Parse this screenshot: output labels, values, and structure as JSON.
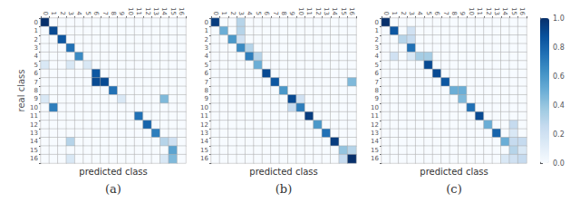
{
  "chart_data": [
    {
      "type": "heatmap",
      "title": "(a)",
      "xlabel": "predicted class",
      "ylabel": "real class",
      "categories": [
        "0",
        "1",
        "2",
        "3",
        "4",
        "5",
        "6",
        "7",
        "8",
        "9",
        "10",
        "11",
        "12",
        "13",
        "14",
        "15",
        "16"
      ],
      "color": "Blues",
      "grid": true,
      "colorbar_range": [
        0.0,
        1.0
      ],
      "colorbar_ticks": [
        {
          "value": 0.0,
          "label": "0.0"
        },
        0.2,
        0.4,
        0.6,
        0.8,
        {
          "value": 1.0,
          "label": "1.0"
        }
      ],
      "values": [
        [
          1.0,
          0.0,
          0.0,
          0.0,
          0.0,
          0.0,
          0.0,
          0.0,
          0.0,
          0.0,
          0.0,
          0.0,
          0.0,
          0.0,
          0.0,
          0.0,
          0.0
        ],
        [
          0.0,
          0.9,
          0.0,
          0.0,
          0.0,
          0.0,
          0.0,
          0.0,
          0.0,
          0.0,
          0.0,
          0.0,
          0.0,
          0.0,
          0.0,
          0.0,
          0.0
        ],
        [
          0.0,
          0.0,
          0.85,
          0.0,
          0.0,
          0.0,
          0.0,
          0.0,
          0.0,
          0.0,
          0.0,
          0.0,
          0.0,
          0.0,
          0.0,
          0.0,
          0.0
        ],
        [
          0.0,
          0.0,
          0.0,
          0.75,
          0.0,
          0.0,
          0.0,
          0.0,
          0.0,
          0.0,
          0.0,
          0.0,
          0.0,
          0.0,
          0.0,
          0.0,
          0.0
        ],
        [
          0.0,
          0.0,
          0.0,
          0.0,
          0.65,
          0.0,
          0.0,
          0.0,
          0.0,
          0.0,
          0.0,
          0.0,
          0.0,
          0.0,
          0.0,
          0.0,
          0.0
        ],
        [
          0.15,
          0.0,
          0.0,
          0.15,
          0.0,
          0.15,
          0.0,
          0.0,
          0.0,
          0.0,
          0.0,
          0.0,
          0.0,
          0.0,
          0.0,
          0.0,
          0.0
        ],
        [
          0.0,
          0.0,
          0.0,
          0.0,
          0.0,
          0.0,
          0.85,
          0.0,
          0.0,
          0.0,
          0.0,
          0.0,
          0.0,
          0.0,
          0.0,
          0.0,
          0.0
        ],
        [
          0.0,
          0.0,
          0.0,
          0.0,
          0.0,
          0.0,
          0.9,
          0.9,
          0.0,
          0.0,
          0.0,
          0.0,
          0.0,
          0.0,
          0.0,
          0.0,
          0.0
        ],
        [
          0.0,
          0.0,
          0.0,
          0.0,
          0.0,
          0.0,
          0.0,
          0.0,
          0.75,
          0.0,
          0.0,
          0.0,
          0.0,
          0.0,
          0.0,
          0.0,
          0.0
        ],
        [
          0.15,
          0.0,
          0.0,
          0.0,
          0.0,
          0.0,
          0.0,
          0.0,
          0.0,
          0.15,
          0.0,
          0.0,
          0.0,
          0.0,
          0.45,
          0.0,
          0.0
        ],
        [
          0.0,
          0.7,
          0.0,
          0.0,
          0.0,
          0.0,
          0.0,
          0.0,
          0.0,
          0.0,
          0.0,
          0.0,
          0.0,
          0.0,
          0.0,
          0.0,
          0.0
        ],
        [
          0.0,
          0.0,
          0.0,
          0.0,
          0.0,
          0.0,
          0.0,
          0.0,
          0.0,
          0.0,
          0.0,
          0.75,
          0.0,
          0.0,
          0.0,
          0.0,
          0.0
        ],
        [
          0.0,
          0.0,
          0.0,
          0.0,
          0.0,
          0.0,
          0.0,
          0.0,
          0.0,
          0.0,
          0.0,
          0.0,
          0.8,
          0.0,
          0.0,
          0.0,
          0.0
        ],
        [
          0.0,
          0.0,
          0.0,
          0.0,
          0.0,
          0.0,
          0.0,
          0.0,
          0.0,
          0.0,
          0.0,
          0.0,
          0.0,
          0.7,
          0.0,
          0.0,
          0.0
        ],
        [
          0.0,
          0.0,
          0.0,
          0.3,
          0.0,
          0.0,
          0.0,
          0.0,
          0.0,
          0.0,
          0.0,
          0.0,
          0.0,
          0.0,
          0.3,
          0.2,
          0.0
        ],
        [
          0.0,
          0.0,
          0.0,
          0.0,
          0.0,
          0.0,
          0.0,
          0.0,
          0.0,
          0.0,
          0.0,
          0.0,
          0.0,
          0.0,
          0.0,
          0.55,
          0.0
        ],
        [
          0.0,
          0.0,
          0.0,
          0.15,
          0.0,
          0.0,
          0.0,
          0.0,
          0.0,
          0.0,
          0.0,
          0.0,
          0.0,
          0.0,
          0.15,
          0.45,
          0.0
        ]
      ]
    },
    {
      "type": "heatmap",
      "title": "(b)",
      "xlabel": "predicted class",
      "categories": [
        "0",
        "1",
        "2",
        "3",
        "4",
        "5",
        "6",
        "7",
        "8",
        "9",
        "10",
        "11",
        "12",
        "13",
        "14",
        "15",
        "16"
      ],
      "color": "Blues",
      "grid": true,
      "colorbar_range": [
        0.0,
        1.0
      ],
      "colorbar_ticks": [
        {
          "value": 0.0,
          "label": "0.0"
        },
        0.2,
        0.4,
        0.6,
        0.8,
        {
          "value": 1.0,
          "label": "1.0"
        }
      ],
      "values": [
        [
          0.95,
          0.0,
          0.0,
          0.3,
          0.0,
          0.0,
          0.0,
          0.0,
          0.0,
          0.0,
          0.0,
          0.0,
          0.0,
          0.0,
          0.0,
          0.0,
          0.0
        ],
        [
          0.0,
          0.5,
          0.0,
          0.3,
          0.0,
          0.0,
          0.0,
          0.0,
          0.0,
          0.0,
          0.0,
          0.0,
          0.0,
          0.0,
          0.0,
          0.0,
          0.0
        ],
        [
          0.0,
          0.0,
          0.6,
          0.2,
          0.0,
          0.0,
          0.0,
          0.0,
          0.0,
          0.0,
          0.0,
          0.0,
          0.0,
          0.0,
          0.0,
          0.0,
          0.0
        ],
        [
          0.0,
          0.0,
          0.0,
          0.65,
          0.3,
          0.0,
          0.0,
          0.0,
          0.0,
          0.0,
          0.0,
          0.0,
          0.0,
          0.0,
          0.0,
          0.0,
          0.0
        ],
        [
          0.0,
          0.0,
          0.0,
          0.0,
          0.7,
          0.3,
          0.0,
          0.0,
          0.0,
          0.0,
          0.0,
          0.0,
          0.0,
          0.0,
          0.0,
          0.0,
          0.0
        ],
        [
          0.0,
          0.0,
          0.0,
          0.0,
          0.0,
          0.5,
          0.0,
          0.0,
          0.0,
          0.0,
          0.0,
          0.0,
          0.0,
          0.0,
          0.0,
          0.0,
          0.0
        ],
        [
          0.0,
          0.0,
          0.0,
          0.0,
          0.0,
          0.0,
          0.9,
          0.0,
          0.0,
          0.0,
          0.0,
          0.0,
          0.0,
          0.0,
          0.0,
          0.0,
          0.0
        ],
        [
          0.0,
          0.0,
          0.0,
          0.0,
          0.0,
          0.0,
          0.0,
          0.85,
          0.0,
          0.0,
          0.0,
          0.0,
          0.0,
          0.0,
          0.0,
          0.0,
          0.45
        ],
        [
          0.0,
          0.0,
          0.0,
          0.0,
          0.0,
          0.0,
          0.0,
          0.0,
          0.6,
          0.0,
          0.0,
          0.0,
          0.0,
          0.0,
          0.0,
          0.0,
          0.0
        ],
        [
          0.0,
          0.0,
          0.0,
          0.0,
          0.0,
          0.0,
          0.0,
          0.0,
          0.0,
          0.9,
          0.2,
          0.0,
          0.0,
          0.0,
          0.0,
          0.0,
          0.0
        ],
        [
          0.0,
          0.0,
          0.0,
          0.0,
          0.0,
          0.0,
          0.0,
          0.0,
          0.0,
          0.25,
          0.7,
          0.0,
          0.0,
          0.0,
          0.0,
          0.0,
          0.0
        ],
        [
          0.0,
          0.0,
          0.0,
          0.0,
          0.0,
          0.0,
          0.0,
          0.0,
          0.0,
          0.0,
          0.0,
          0.95,
          0.0,
          0.0,
          0.0,
          0.0,
          0.0
        ],
        [
          0.0,
          0.0,
          0.0,
          0.0,
          0.0,
          0.0,
          0.0,
          0.0,
          0.0,
          0.0,
          0.0,
          0.0,
          0.6,
          0.0,
          0.0,
          0.0,
          0.0
        ],
        [
          0.0,
          0.0,
          0.0,
          0.0,
          0.0,
          0.0,
          0.0,
          0.0,
          0.0,
          0.0,
          0.0,
          0.0,
          0.0,
          0.75,
          0.0,
          0.0,
          0.0
        ],
        [
          0.0,
          0.0,
          0.0,
          0.0,
          0.0,
          0.0,
          0.0,
          0.0,
          0.0,
          0.0,
          0.0,
          0.0,
          0.0,
          0.0,
          0.95,
          0.0,
          0.0
        ],
        [
          0.0,
          0.0,
          0.0,
          0.0,
          0.0,
          0.0,
          0.0,
          0.0,
          0.0,
          0.0,
          0.0,
          0.0,
          0.0,
          0.0,
          0.0,
          0.4,
          0.3
        ],
        [
          0.0,
          0.0,
          0.0,
          0.0,
          0.0,
          0.0,
          0.0,
          0.0,
          0.0,
          0.0,
          0.0,
          0.0,
          0.0,
          0.0,
          0.0,
          0.25,
          1.0
        ]
      ]
    },
    {
      "type": "heatmap",
      "title": "(c)",
      "xlabel": "predicted class",
      "categories": [
        "0",
        "1",
        "2",
        "3",
        "4",
        "5",
        "6",
        "7",
        "8",
        "9",
        "10",
        "11",
        "12",
        "13",
        "14",
        "15",
        "16"
      ],
      "color": "Blues",
      "grid": true,
      "colorbar_range": [
        0.0,
        1.0
      ],
      "colorbar_ticks": [
        {
          "value": 0.0,
          "label": "0.0"
        },
        0.2,
        0.4,
        0.6,
        0.8,
        {
          "value": 1.0,
          "label": "1.0"
        }
      ],
      "values": [
        [
          1.0,
          0.0,
          0.0,
          0.0,
          0.0,
          0.0,
          0.0,
          0.0,
          0.0,
          0.0,
          0.0,
          0.0,
          0.0,
          0.0,
          0.0,
          0.0,
          0.0
        ],
        [
          0.0,
          0.85,
          0.0,
          0.2,
          0.0,
          0.0,
          0.0,
          0.0,
          0.0,
          0.0,
          0.0,
          0.0,
          0.0,
          0.0,
          0.0,
          0.0,
          0.0
        ],
        [
          0.0,
          0.0,
          0.3,
          0.25,
          0.0,
          0.0,
          0.0,
          0.0,
          0.0,
          0.0,
          0.0,
          0.0,
          0.0,
          0.0,
          0.0,
          0.0,
          0.0
        ],
        [
          0.0,
          0.0,
          0.0,
          0.75,
          0.0,
          0.0,
          0.0,
          0.0,
          0.0,
          0.0,
          0.0,
          0.0,
          0.0,
          0.0,
          0.0,
          0.0,
          0.0
        ],
        [
          0.0,
          0.2,
          0.0,
          0.15,
          0.35,
          0.35,
          0.0,
          0.0,
          0.0,
          0.0,
          0.0,
          0.0,
          0.0,
          0.0,
          0.0,
          0.0,
          0.0
        ],
        [
          0.0,
          0.0,
          0.0,
          0.0,
          0.0,
          0.9,
          0.0,
          0.0,
          0.0,
          0.0,
          0.0,
          0.0,
          0.0,
          0.0,
          0.0,
          0.0,
          0.0
        ],
        [
          0.0,
          0.0,
          0.0,
          0.0,
          0.0,
          0.0,
          0.9,
          0.0,
          0.0,
          0.0,
          0.0,
          0.0,
          0.0,
          0.0,
          0.0,
          0.0,
          0.0
        ],
        [
          0.0,
          0.0,
          0.0,
          0.0,
          0.0,
          0.0,
          0.0,
          0.85,
          0.0,
          0.0,
          0.0,
          0.0,
          0.0,
          0.0,
          0.0,
          0.0,
          0.0
        ],
        [
          0.0,
          0.0,
          0.0,
          0.0,
          0.0,
          0.0,
          0.0,
          0.0,
          0.5,
          0.5,
          0.0,
          0.0,
          0.0,
          0.0,
          0.0,
          0.0,
          0.0
        ],
        [
          0.0,
          0.0,
          0.0,
          0.0,
          0.0,
          0.0,
          0.0,
          0.0,
          0.0,
          0.45,
          0.0,
          0.0,
          0.0,
          0.0,
          0.0,
          0.0,
          0.0
        ],
        [
          0.0,
          0.0,
          0.0,
          0.0,
          0.0,
          0.0,
          0.0,
          0.0,
          0.0,
          0.0,
          0.75,
          0.0,
          0.0,
          0.0,
          0.0,
          0.0,
          0.0
        ],
        [
          0.0,
          0.0,
          0.0,
          0.0,
          0.0,
          0.0,
          0.0,
          0.0,
          0.0,
          0.0,
          0.0,
          0.9,
          0.0,
          0.0,
          0.0,
          0.0,
          0.0
        ],
        [
          0.0,
          0.0,
          0.0,
          0.0,
          0.0,
          0.0,
          0.0,
          0.0,
          0.0,
          0.0,
          0.0,
          0.0,
          0.5,
          0.0,
          0.0,
          0.25,
          0.0
        ],
        [
          0.0,
          0.0,
          0.0,
          0.0,
          0.0,
          0.0,
          0.0,
          0.0,
          0.0,
          0.0,
          0.0,
          0.0,
          0.0,
          0.8,
          0.0,
          0.15,
          0.0
        ],
        [
          0.0,
          0.0,
          0.0,
          0.0,
          0.0,
          0.0,
          0.0,
          0.0,
          0.0,
          0.0,
          0.0,
          0.0,
          0.0,
          0.0,
          0.5,
          0.25,
          0.25
        ],
        [
          0.0,
          0.0,
          0.0,
          0.0,
          0.0,
          0.0,
          0.0,
          0.0,
          0.0,
          0.0,
          0.0,
          0.0,
          0.0,
          0.0,
          0.0,
          0.3,
          0.15
        ],
        [
          0.0,
          0.0,
          0.0,
          0.0,
          0.0,
          0.0,
          0.0,
          0.0,
          0.0,
          0.0,
          0.0,
          0.0,
          0.0,
          0.0,
          0.15,
          0.2,
          0.25
        ]
      ]
    }
  ]
}
